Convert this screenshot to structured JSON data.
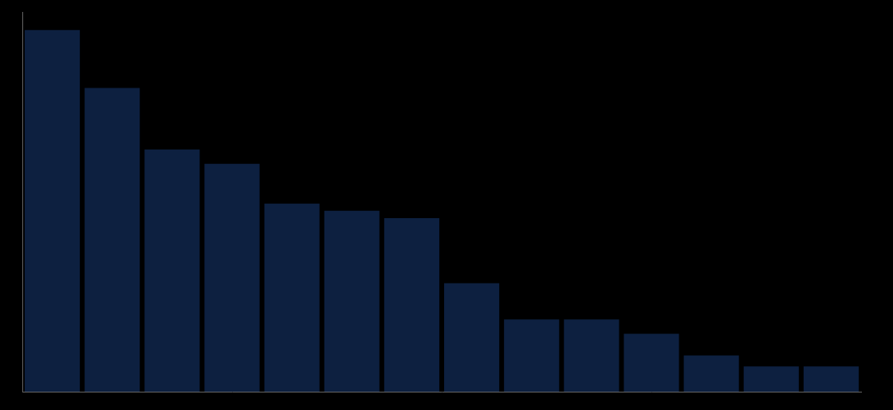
{
  "chart_data": {
    "type": "bar",
    "categories": [
      null,
      null,
      null,
      null,
      null,
      null,
      null,
      null,
      null,
      null,
      null,
      null,
      null,
      null
    ],
    "values": [
      1.0,
      0.84,
      0.67,
      0.63,
      0.52,
      0.5,
      0.48,
      0.3,
      0.2,
      0.2,
      0.16,
      0.1,
      0.07,
      0.07
    ],
    "color": "#0d2040",
    "ylim": [
      0,
      1.05
    ],
    "grid": false,
    "tick_labels": false
  }
}
